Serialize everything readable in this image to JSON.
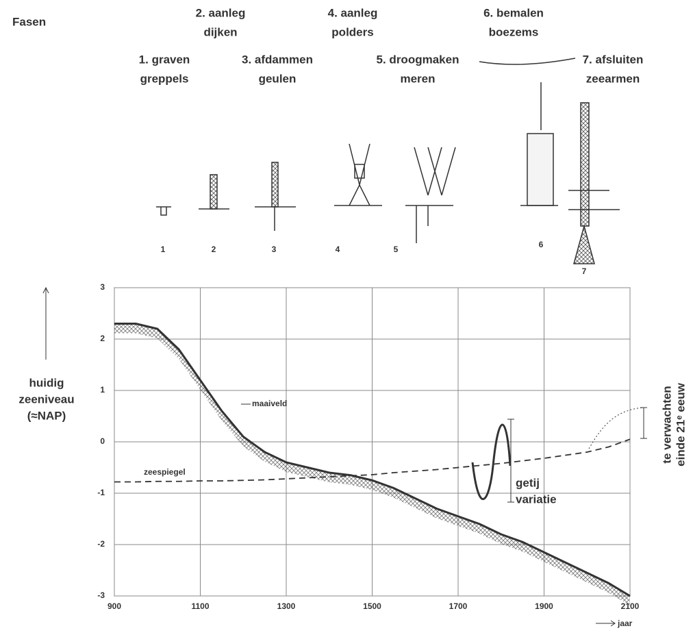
{
  "heading": "Fasen",
  "phases": [
    {
      "title": [
        "1. graven",
        "greppels"
      ],
      "number": 1
    },
    {
      "title": [
        "2. aanleg",
        "dijken"
      ],
      "number": 2
    },
    {
      "title": [
        "3. afdammen",
        "geulen"
      ],
      "number": 3
    },
    {
      "title": [
        "4. aanleg",
        "polders"
      ],
      "number": 4
    },
    {
      "title": [
        "5. droogmaken",
        "meren"
      ],
      "number": 5
    },
    {
      "title": [
        "6. bemalen",
        "boezems"
      ],
      "number": 6
    },
    {
      "title": [
        "7. afsluiten",
        "zeearmen"
      ],
      "number": 7
    }
  ],
  "chart_data": {
    "type": "line",
    "y_label": [
      "huidig",
      "zeeniveau",
      "(≈NAP)"
    ],
    "x_label": "jaar",
    "annotations": {
      "maaiveld": "maaiveld",
      "zeespiegel": "zeespiegel",
      "tide": [
        "getij",
        "variatie"
      ],
      "expected": [
        "te verwachten",
        "einde 21ᵉ eeuw"
      ]
    },
    "x": [
      900,
      950,
      1000,
      1050,
      1100,
      1150,
      1200,
      1250,
      1300,
      1350,
      1400,
      1450,
      1500,
      1550,
      1600,
      1650,
      1700,
      1750,
      1800,
      1850,
      1900,
      1950,
      2000,
      2050,
      2100
    ],
    "series": [
      {
        "name": "maaiveld",
        "color": "#333333",
        "values": [
          2.3,
          2.3,
          2.2,
          1.8,
          1.2,
          0.6,
          0.1,
          -0.2,
          -0.4,
          -0.5,
          -0.6,
          -0.65,
          -0.75,
          -0.9,
          -1.1,
          -1.3,
          -1.45,
          -1.6,
          -1.8,
          -1.95,
          -2.15,
          -2.35,
          -2.55,
          -2.75,
          -3
        ]
      },
      {
        "name": "zeespiegel",
        "color": "#333333",
        "dashed": true,
        "values": [
          -0.78,
          -0.78,
          -0.77,
          -0.77,
          -0.76,
          -0.76,
          -0.75,
          -0.74,
          -0.72,
          -0.7,
          -0.68,
          -0.66,
          -0.64,
          -0.6,
          -0.57,
          -0.54,
          -0.5,
          -0.46,
          -0.42,
          -0.37,
          -0.32,
          -0.26,
          -0.2,
          -0.1,
          0.05
        ]
      }
    ],
    "xlim": [
      900,
      2100
    ],
    "xticks": [
      900,
      1100,
      1300,
      1500,
      1700,
      1900,
      2100
    ],
    "ylim": [
      -3,
      3
    ],
    "yticks": [
      -3,
      -2,
      -1,
      0,
      1,
      2,
      3
    ],
    "grid": true
  }
}
